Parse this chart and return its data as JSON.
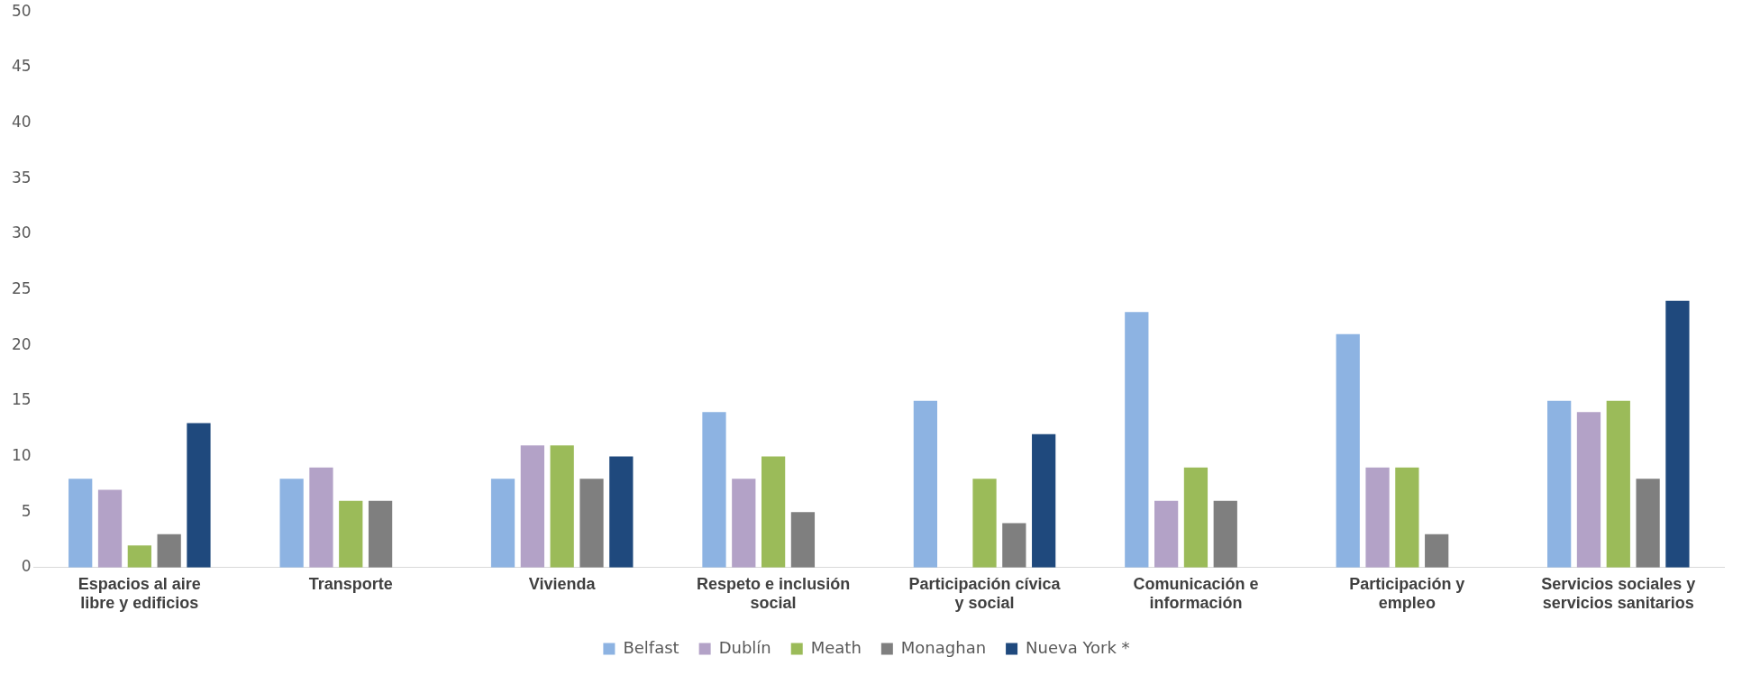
{
  "chart_data": {
    "type": "bar",
    "categories": [
      "Espacios al aire libre y edificios",
      "Transporte",
      "Vivienda",
      "Respeto e inclusión social",
      "Participación cívica y social",
      "Comunicación e información",
      "Participación y empleo",
      "Servicios sociales y servicios sanitarios"
    ],
    "series": [
      {
        "name": "Belfast",
        "color": "#8db3e2",
        "values": [
          8,
          8,
          8,
          14,
          15,
          23,
          21,
          15
        ]
      },
      {
        "name": "Dublín",
        "color": "#b3a2c7",
        "values": [
          7,
          9,
          11,
          8,
          null,
          6,
          9,
          14
        ]
      },
      {
        "name": "Meath",
        "color": "#9bbb59",
        "values": [
          2,
          6,
          11,
          10,
          8,
          9,
          9,
          15
        ]
      },
      {
        "name": "Monaghan",
        "color": "#7f7f7f",
        "values": [
          3,
          6,
          8,
          5,
          4,
          6,
          3,
          8
        ]
      },
      {
        "name": "Nueva York *",
        "color": "#1f497d",
        "values": [
          13,
          null,
          10,
          null,
          12,
          null,
          null,
          24
        ]
      }
    ],
    "ylim": [
      0,
      50
    ],
    "yticks": [
      0,
      5,
      10,
      15,
      20,
      25,
      30,
      35,
      40,
      45,
      50
    ],
    "grid": false,
    "legend": "bottom"
  }
}
